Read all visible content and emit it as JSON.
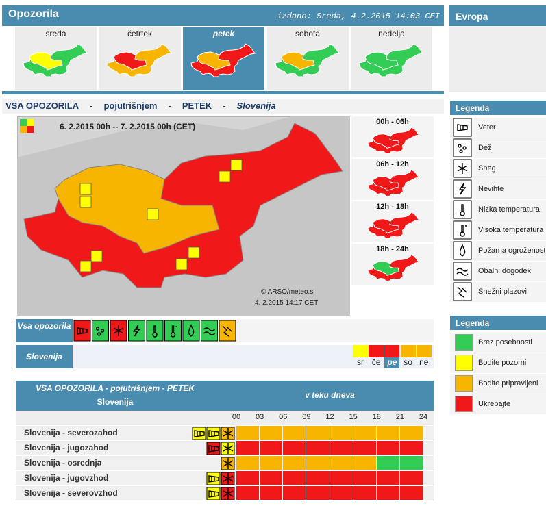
{
  "header": {
    "title": "Opozorila",
    "issued": "izdano: Sreda, 4.2.2015 14:03 CET",
    "side_title": "Evropa"
  },
  "tabs": [
    {
      "label": "sreda",
      "active": false,
      "colors": [
        "#ffff00",
        "#33cc55"
      ]
    },
    {
      "label": "četrtek",
      "active": false,
      "colors": [
        "#f01818",
        "#f8b500"
      ]
    },
    {
      "label": "petek",
      "active": true,
      "colors": [
        "#f8b500",
        "#f01818"
      ]
    },
    {
      "label": "sobota",
      "active": false,
      "colors": [
        "#f8b500",
        "#33cc55"
      ]
    },
    {
      "label": "nedelja",
      "active": false,
      "colors": [
        "#33cc55",
        "#33cc55"
      ]
    }
  ],
  "section_title": {
    "parts": [
      "VSA OPOZORILA",
      "-",
      "pojutrišnjem",
      "-",
      "PETEK",
      "-",
      "Slovenija"
    ]
  },
  "map": {
    "period": "6. 2.2015 00h -- 7. 2.2015 00h (CET)",
    "copyright": "© ARSO/meteo.si",
    "timestamp": "4. 2.2015 14:17 CET",
    "colors": [
      "#f8b500",
      "#f01818"
    ]
  },
  "time_panels": [
    {
      "label": "00h - 06h",
      "colors": [
        "#f01818",
        "#f01818"
      ]
    },
    {
      "label": "06h - 12h",
      "colors": [
        "#f01818",
        "#f01818"
      ]
    },
    {
      "label": "12h - 18h",
      "colors": [
        "#f01818",
        "#f01818"
      ]
    },
    {
      "label": "18h - 24h",
      "colors": [
        "#33cc55",
        "#f01818"
      ]
    }
  ],
  "summary": {
    "all_label": "Vsa opozorila",
    "icon_colors": [
      "#f01818",
      "#33cc55",
      "#f01818",
      "#33cc55",
      "#33cc55",
      "#33cc55",
      "#33cc55",
      "#33cc55",
      "#f8b500"
    ],
    "region_label": "Slovenija",
    "days": [
      {
        "label": "sr",
        "color": "#ffff00",
        "active": false
      },
      {
        "label": "če",
        "color": "#f01818",
        "active": false
      },
      {
        "label": "pe",
        "color": "#f01818",
        "active": true
      },
      {
        "label": "so",
        "color": "#f8b500",
        "active": false
      },
      {
        "label": "ne",
        "color": "#f8b500",
        "active": false
      }
    ]
  },
  "table": {
    "title": "VSA OPOZORILA - pojutrišnjem - PETEK",
    "subtitle": "Slovenija",
    "period_label": "v teku dneva",
    "hours": [
      "00",
      "03",
      "06",
      "09",
      "12",
      "15",
      "18",
      "21",
      "24"
    ],
    "rows": [
      {
        "name": "Slovenija - severozahod",
        "icons": [
          "#ffff00",
          "#ffff00",
          "#f8b500"
        ],
        "cells": [
          "#f8b500",
          "#f8b500",
          "#f8b500",
          "#f8b500",
          "#f8b500",
          "#f8b500",
          "#f8b500",
          "#f8b500"
        ]
      },
      {
        "name": "Slovenija - jugozahod",
        "icons": [
          "#f01818",
          "#ffff00"
        ],
        "cells": [
          "#f01818",
          "#f01818",
          "#f01818",
          "#f01818",
          "#f01818",
          "#f01818",
          "#f01818",
          "#f01818"
        ]
      },
      {
        "name": "Slovenija - osrednja",
        "icons": [
          "#f8b500"
        ],
        "cells": [
          "#f8b500",
          "#f8b500",
          "#f8b500",
          "#f8b500",
          "#f8b500",
          "#f8b500",
          "#33cc55",
          "#33cc55"
        ]
      },
      {
        "name": "Slovenija - jugovzhod",
        "icons": [
          "#ffff00",
          "#f01818"
        ],
        "cells": [
          "#f01818",
          "#f01818",
          "#f01818",
          "#f01818",
          "#f01818",
          "#f01818",
          "#f01818",
          "#f01818"
        ]
      },
      {
        "name": "Slovenija - severovzhod",
        "icons": [
          "#ffff00",
          "#f01818"
        ],
        "cells": [
          "#f01818",
          "#f01818",
          "#f01818",
          "#f01818",
          "#f01818",
          "#f01818",
          "#f01818",
          "#f01818"
        ]
      }
    ]
  },
  "legend_types": {
    "title": "Legenda",
    "items": [
      "Veter",
      "Dež",
      "Sneg",
      "Nevihte",
      "Nizka temperatura",
      "Visoka temperatura",
      "Požarna ogroženost",
      "Obalni dogodek",
      "Snežni plazovi"
    ]
  },
  "legend_levels": {
    "title": "Legenda",
    "items": [
      {
        "label": "Brez posebnosti",
        "color": "#33cc55"
      },
      {
        "label": "Bodite pozorni",
        "color": "#ffff00"
      },
      {
        "label": "Bodite pripravljeni",
        "color": "#f8b500"
      },
      {
        "label": "Ukrepajte",
        "color": "#f01818"
      }
    ]
  }
}
